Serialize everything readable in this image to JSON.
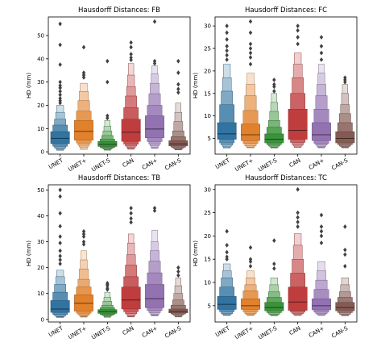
{
  "chart_data": [
    {
      "type": "boxen",
      "title": "Hausdorff Distances: FB",
      "ylabel": "HD (mm)",
      "xlabel": "",
      "ylim": [
        -1,
        58
      ],
      "yticks": [
        0,
        10,
        20,
        30,
        40,
        50
      ],
      "categories": [
        "UNET",
        "UNET+",
        "UNET-S",
        "CAN",
        "CAN+",
        "CAN-S"
      ],
      "series": [
        {
          "min": 0.6,
          "levels": [
            [
              3.5,
              8.7
            ],
            [
              2.4,
              11.5
            ],
            [
              1.7,
              14.0
            ],
            [
              1.2,
              17.0
            ],
            [
              0.9,
              20.0
            ]
          ],
          "median": 5.8,
          "outliers": [
            55.0,
            46.0,
            37.5,
            30.0,
            28.5,
            27.5,
            26.0,
            24.5,
            23.0,
            22.0,
            21.0
          ]
        },
        {
          "min": 1.0,
          "levels": [
            [
              5.0,
              13.5
            ],
            [
              3.8,
              17.5
            ],
            [
              2.8,
              22.0
            ],
            [
              2.1,
              26.0
            ],
            [
              1.6,
              29.5
            ]
          ],
          "median": 8.8,
          "outliers": [
            45.0,
            34.0,
            33.0,
            32.0
          ]
        },
        {
          "min": 0.8,
          "levels": [
            [
              2.3,
              4.5
            ],
            [
              1.8,
              5.5
            ],
            [
              1.5,
              7.0
            ],
            [
              1.2,
              9.0
            ],
            [
              1.0,
              11.0
            ],
            [
              0.9,
              13.5
            ]
          ],
          "median": 3.2,
          "outliers": [
            39.0,
            30.0,
            15.5,
            14.5
          ]
        },
        {
          "min": 1.2,
          "levels": [
            [
              4.5,
              14.0
            ],
            [
              3.3,
              19.0
            ],
            [
              2.5,
              24.0
            ],
            [
              1.9,
              28.0
            ],
            [
              1.5,
              33.0
            ],
            [
              1.3,
              38.0
            ]
          ],
          "median": 8.4,
          "outliers": [
            47.0,
            45.0,
            42.0,
            40.5,
            39.5
          ]
        },
        {
          "min": 1.5,
          "levels": [
            [
              6.0,
              15.5
            ],
            [
              4.4,
              20.0
            ],
            [
              3.3,
              25.0
            ],
            [
              2.5,
              29.5
            ],
            [
              2.0,
              33.5
            ],
            [
              1.7,
              37.0
            ]
          ],
          "median": 9.8,
          "outliers": [
            56.0,
            39.0,
            38.0
          ]
        },
        {
          "min": 1.0,
          "levels": [
            [
              2.5,
              4.8
            ],
            [
              2.0,
              6.5
            ],
            [
              1.6,
              9.0
            ],
            [
              1.3,
              13.0
            ],
            [
              1.1,
              17.0
            ],
            [
              1.0,
              21.0
            ]
          ],
          "median": 3.4,
          "outliers": [
            39.0,
            34.0,
            29.0,
            27.0,
            25.5
          ]
        }
      ]
    },
    {
      "type": "boxen",
      "title": "Hausdorff Distances: FC",
      "ylabel": "HD (mm)",
      "xlabel": "",
      "ylim": [
        1.5,
        32
      ],
      "yticks": [
        5,
        10,
        15,
        20,
        25,
        30
      ],
      "categories": [
        "UNET",
        "UNET+",
        "UNET-S",
        "CAN",
        "CAN+",
        "CAN-S"
      ],
      "series": [
        {
          "min": 2.8,
          "levels": [
            [
              4.8,
              8.5
            ],
            [
              4.0,
              12.5
            ],
            [
              3.5,
              15.5
            ],
            [
              3.2,
              18.5
            ],
            [
              3.0,
              21.5
            ]
          ],
          "median": 6.0,
          "outliers": [
            30.0,
            28.5,
            27.0,
            25.5,
            24.5,
            23.5,
            22.5
          ]
        },
        {
          "min": 2.9,
          "levels": [
            [
              4.5,
              8.2
            ],
            [
              3.9,
              11.2
            ],
            [
              3.4,
              14.5
            ],
            [
              3.1,
              17.0
            ],
            [
              3.0,
              19.5
            ]
          ],
          "median": 5.8,
          "outliers": [
            31.0,
            28.5,
            26.0,
            25.0,
            24.0,
            23.0,
            21.5
          ]
        },
        {
          "min": 2.9,
          "levels": [
            [
              4.0,
              6.0
            ],
            [
              3.6,
              7.5
            ],
            [
              3.3,
              9.0
            ],
            [
              3.1,
              11.0
            ],
            [
              3.0,
              13.0
            ],
            [
              2.95,
              15.0
            ]
          ],
          "median": 4.8,
          "outliers": [
            18.0,
            17.0,
            16.5,
            15.5
          ]
        },
        {
          "min": 3.0,
          "levels": [
            [
              4.8,
              11.5
            ],
            [
              4.1,
              15.0
            ],
            [
              3.6,
              18.5
            ],
            [
              3.3,
              21.5
            ],
            [
              3.1,
              24.0
            ]
          ],
          "median": 6.8,
          "outliers": [
            30.0,
            29.0,
            27.5,
            26.0
          ]
        },
        {
          "min": 3.0,
          "levels": [
            [
              4.5,
              8.5
            ],
            [
              3.9,
              11.5
            ],
            [
              3.5,
              14.5
            ],
            [
              3.2,
              17.0
            ],
            [
              3.05,
              19.5
            ],
            [
              3.0,
              21.5
            ]
          ],
          "median": 5.8,
          "outliers": [
            27.5,
            25.5,
            24.0,
            22.5
          ]
        },
        {
          "min": 3.0,
          "levels": [
            [
              4.0,
              6.5
            ],
            [
              3.6,
              8.5
            ],
            [
              3.3,
              10.5
            ],
            [
              3.15,
              12.5
            ],
            [
              3.05,
              15.0
            ],
            [
              3.0,
              17.0
            ]
          ],
          "median": 5.0,
          "outliers": [
            18.5,
            18.0,
            17.5
          ]
        }
      ]
    },
    {
      "type": "boxen",
      "title": "Hausdorff Distances: TB",
      "ylabel": "HD (mm)",
      "xlabel": "",
      "ylim": [
        -1,
        52
      ],
      "yticks": [
        0,
        10,
        20,
        30,
        40,
        50
      ],
      "categories": [
        "UNET",
        "UNET+",
        "UNET-S",
        "CAN",
        "CAN+",
        "CAN-S"
      ],
      "series": [
        {
          "min": 0.8,
          "levels": [
            [
              2.7,
              7.3
            ],
            [
              1.9,
              10.5
            ],
            [
              1.4,
              13.5
            ],
            [
              1.1,
              16.5
            ],
            [
              0.9,
              19.0
            ]
          ],
          "median": 4.0,
          "outliers": [
            50.0,
            47.5,
            41.0,
            36.0,
            32.0,
            29.5,
            26.5,
            24.5,
            23.0,
            21.5
          ]
        },
        {
          "min": 1.0,
          "levels": [
            [
              3.2,
              9.5
            ],
            [
              2.4,
              12.5
            ],
            [
              1.8,
              15.5
            ],
            [
              1.4,
              19.5
            ],
            [
              1.2,
              23.0
            ],
            [
              1.05,
              26.5
            ]
          ],
          "median": 6.2,
          "outliers": [
            34.0,
            33.0,
            32.0,
            30.0,
            29.0
          ]
        },
        {
          "min": 0.9,
          "levels": [
            [
              2.3,
              3.8
            ],
            [
              1.9,
              4.5
            ],
            [
              1.6,
              5.5
            ],
            [
              1.4,
              7.0
            ],
            [
              1.2,
              8.5
            ],
            [
              1.0,
              10.5
            ]
          ],
          "median": 3.0,
          "outliers": [
            14.0,
            13.5,
            13.0,
            12.0,
            11.5
          ]
        },
        {
          "min": 1.0,
          "levels": [
            [
              4.0,
              12.5
            ],
            [
              3.0,
              16.5
            ],
            [
              2.2,
              21.0
            ],
            [
              1.7,
              25.0
            ],
            [
              1.3,
              29.5
            ],
            [
              1.1,
              33.0
            ]
          ],
          "median": 7.5,
          "outliers": [
            43.0,
            41.0,
            39.0,
            37.5
          ]
        },
        {
          "min": 1.5,
          "levels": [
            [
              4.5,
              13.5
            ],
            [
              3.4,
              18.0
            ],
            [
              2.6,
              22.5
            ],
            [
              2.0,
              26.5
            ],
            [
              1.7,
              30.0
            ],
            [
              1.55,
              34.5
            ]
          ],
          "median": 8.0,
          "outliers": [
            43.0,
            42.0
          ]
        },
        {
          "min": 1.0,
          "levels": [
            [
              2.5,
              4.0
            ],
            [
              2.1,
              5.5
            ],
            [
              1.8,
              7.5
            ],
            [
              1.5,
              10.0
            ],
            [
              1.3,
              13.0
            ],
            [
              1.1,
              16.0
            ]
          ],
          "median": 3.1,
          "outliers": [
            20.0,
            18.5,
            17.0
          ]
        }
      ]
    },
    {
      "type": "boxen",
      "title": "Hausdorff Distances: TC",
      "ylabel": "HD (mm)",
      "xlabel": "",
      "ylim": [
        1.5,
        31
      ],
      "yticks": [
        5,
        10,
        15,
        20,
        25,
        30
      ],
      "categories": [
        "UNET",
        "UNET+",
        "UNET-S",
        "CAN",
        "CAN+",
        "CAN-S"
      ],
      "series": [
        {
          "min": 2.9,
          "levels": [
            [
              4.2,
              7.0
            ],
            [
              3.7,
              9.0
            ],
            [
              3.3,
              11.0
            ],
            [
              3.1,
              12.5
            ],
            [
              3.0,
              14.0
            ]
          ],
          "median": 5.3,
          "outliers": [
            21.0,
            18.0,
            16.5,
            15.5,
            15.0
          ]
        },
        {
          "min": 2.9,
          "levels": [
            [
              4.2,
              6.5
            ],
            [
              3.7,
              8.2
            ],
            [
              3.3,
              9.5
            ],
            [
              3.1,
              11.0
            ],
            [
              3.0,
              12.5
            ]
          ],
          "median": 5.0,
          "outliers": [
            17.5,
            15.0,
            14.5,
            13.5
          ]
        },
        {
          "min": 2.9,
          "levels": [
            [
              3.9,
              5.7
            ],
            [
              3.5,
              6.8
            ],
            [
              3.2,
              8.0
            ],
            [
              3.05,
              9.5
            ],
            [
              2.95,
              11.0
            ]
          ],
          "median": 4.6,
          "outliers": [
            19.0,
            14.0,
            13.0
          ]
        },
        {
          "min": 2.9,
          "levels": [
            [
              4.0,
              9.0
            ],
            [
              3.6,
              12.0
            ],
            [
              3.3,
              15.0
            ],
            [
              3.1,
              18.0
            ],
            [
              3.0,
              20.5
            ]
          ],
          "median": 5.8,
          "outliers": [
            30.0,
            25.0,
            24.0,
            23.0,
            22.0
          ]
        },
        {
          "min": 2.9,
          "levels": [
            [
              4.1,
              6.5
            ],
            [
              3.6,
              8.5
            ],
            [
              3.3,
              10.5
            ],
            [
              3.1,
              12.5
            ],
            [
              3.0,
              14.5
            ]
          ],
          "median": 5.0,
          "outliers": [
            24.5,
            22.0,
            21.0,
            20.0,
            18.5
          ]
        },
        {
          "min": 2.9,
          "levels": [
            [
              3.9,
              5.7
            ],
            [
              3.5,
              6.8
            ],
            [
              3.2,
              8.0
            ],
            [
              3.05,
              9.5
            ],
            [
              2.95,
              11.0
            ]
          ],
          "median": 4.6,
          "outliers": [
            22.0,
            17.0,
            16.0,
            13.5
          ]
        }
      ]
    }
  ],
  "colors": {
    "series": [
      "#3274a1",
      "#e1812c",
      "#3a923a",
      "#c03d3e",
      "#9372b2",
      "#845b53"
    ],
    "outlier": "#404040",
    "axis": "#000000"
  }
}
